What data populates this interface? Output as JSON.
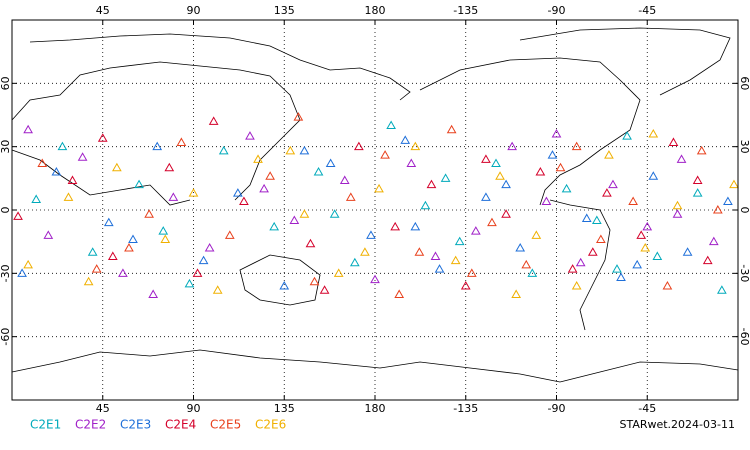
{
  "chart_data": {
    "type": "scatter",
    "xlim": [
      0,
      360
    ],
    "ylim": [
      -90,
      90
    ],
    "xticks": [
      45,
      90,
      135,
      180,
      {
        "value": 225,
        "label": "-135"
      },
      {
        "value": 270,
        "label": "-90"
      },
      {
        "value": 315,
        "label": "-45"
      }
    ],
    "yticks": [
      60,
      30,
      0,
      -30,
      -60
    ],
    "grid": true,
    "footer": "STARwet.2024-03-11",
    "series": [
      {
        "name": "C2E1",
        "color": "#00aabb",
        "x": [
          12,
          40,
          63,
          88,
          105,
          130,
          152,
          170,
          188,
          205,
          222,
          240,
          258,
          275,
          290,
          305,
          320,
          340,
          352,
          25,
          75,
          160,
          215,
          300
        ],
        "y": [
          5,
          -20,
          12,
          -35,
          28,
          -8,
          18,
          -25,
          40,
          2,
          -15,
          22,
          -30,
          10,
          -5,
          35,
          -22,
          8,
          -38,
          30,
          -10,
          -2,
          15,
          -28
        ]
      },
      {
        "name": "C2E2",
        "color": "#a020c8",
        "x": [
          18,
          35,
          55,
          80,
          98,
          118,
          140,
          165,
          180,
          198,
          230,
          248,
          265,
          282,
          298,
          315,
          332,
          348,
          8,
          70,
          125,
          210,
          270,
          330
        ],
        "y": [
          -12,
          25,
          -30,
          6,
          -18,
          35,
          -5,
          14,
          -33,
          22,
          -10,
          30,
          4,
          -25,
          12,
          -8,
          24,
          -15,
          38,
          -40,
          10,
          -22,
          36,
          -2
        ]
      },
      {
        "name": "C2E3",
        "color": "#1e6fd9",
        "x": [
          22,
          48,
          72,
          95,
          112,
          135,
          158,
          178,
          195,
          212,
          235,
          252,
          268,
          285,
          302,
          318,
          335,
          355,
          60,
          145,
          200,
          245,
          310,
          5
        ],
        "y": [
          18,
          -6,
          30,
          -24,
          8,
          -36,
          22,
          -12,
          33,
          -28,
          6,
          -18,
          26,
          -4,
          -32,
          16,
          -20,
          4,
          -14,
          28,
          -8,
          12,
          -26,
          -30
        ]
      },
      {
        "name": "C2E4",
        "color": "#d4002a",
        "x": [
          3,
          30,
          50,
          78,
          92,
          115,
          148,
          172,
          190,
          208,
          225,
          245,
          262,
          278,
          295,
          312,
          328,
          345,
          100,
          155,
          235,
          288,
          340,
          45
        ],
        "y": [
          -3,
          14,
          -22,
          20,
          -30,
          4,
          -16,
          30,
          -8,
          12,
          -36,
          -2,
          18,
          -28,
          8,
          -12,
          32,
          -24,
          42,
          -38,
          24,
          -20,
          14,
          34
        ]
      },
      {
        "name": "C2E5",
        "color": "#e8401c",
        "x": [
          15,
          42,
          68,
          84,
          108,
          128,
          150,
          168,
          185,
          202,
          218,
          238,
          255,
          272,
          292,
          308,
          325,
          342,
          58,
          142,
          228,
          280,
          350,
          192
        ],
        "y": [
          22,
          -28,
          -2,
          32,
          -12,
          16,
          -34,
          6,
          26,
          -20,
          38,
          -6,
          -26,
          20,
          -14,
          4,
          -36,
          28,
          -18,
          44,
          -30,
          30,
          0,
          -40
        ]
      },
      {
        "name": "C2E6",
        "color": "#f0b000",
        "x": [
          8,
          28,
          52,
          76,
          102,
          122,
          145,
          162,
          182,
          200,
          220,
          242,
          260,
          280,
          296,
          314,
          330,
          358,
          90,
          175,
          250,
          318,
          38,
          138
        ],
        "y": [
          -26,
          6,
          20,
          -14,
          -38,
          24,
          -2,
          -30,
          10,
          30,
          -24,
          16,
          -12,
          -36,
          26,
          -18,
          2,
          12,
          8,
          -20,
          -40,
          36,
          -34,
          28
        ]
      }
    ]
  }
}
